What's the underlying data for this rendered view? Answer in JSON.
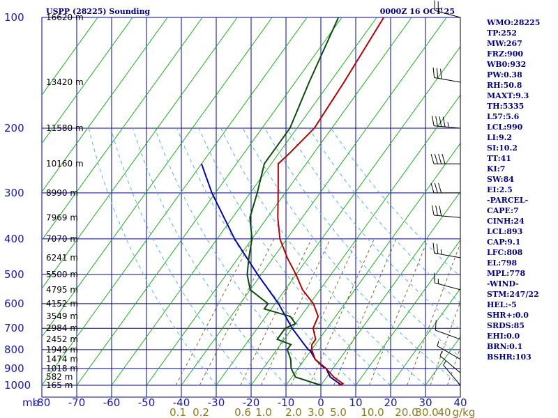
{
  "chart_data": {
    "type": "line",
    "title": "USPP (28225) Sounding",
    "time": "0000Z 16 OCT 25",
    "pressure_ticks": [
      "100",
      "200",
      "300",
      "400",
      "500",
      "600",
      "700",
      "800",
      "900",
      "1000"
    ],
    "pressure_unit": "mb",
    "temperature_ticks": [
      "-80",
      "-70",
      "-60",
      "-50",
      "-40",
      "-30",
      "-20",
      "-10",
      "0",
      "10",
      "20",
      "30",
      "40"
    ],
    "mixing_ratio_ticks": [
      "0.1",
      "0.2",
      "0.6",
      "1.0",
      "2.0",
      "3.0",
      "5.0",
      "10.0",
      "20.0",
      "30.0",
      "40",
      "g/kg"
    ],
    "height_labels": [
      {
        "p": 100,
        "label": "16620 m"
      },
      {
        "p": 150,
        "label": "13420 m"
      },
      {
        "p": 200,
        "label": "11580 m"
      },
      {
        "p": 250,
        "label": "10160 m"
      },
      {
        "p": 300,
        "label": "8990 m"
      },
      {
        "p": 350,
        "label": "7969 m"
      },
      {
        "p": 400,
        "label": "7070 m"
      },
      {
        "p": 450,
        "label": "6241 m"
      },
      {
        "p": 500,
        "label": "5500 m"
      },
      {
        "p": 550,
        "label": "4795 m"
      },
      {
        "p": 600,
        "label": "4152 m"
      },
      {
        "p": 650,
        "label": "3549 m"
      },
      {
        "p": 700,
        "label": "2984 m"
      },
      {
        "p": 750,
        "label": "2452 m"
      },
      {
        "p": 800,
        "label": "1949 m"
      },
      {
        "p": 850,
        "label": "1474 m"
      },
      {
        "p": 900,
        "label": "1018 m"
      },
      {
        "p": 950,
        "label": "582 m"
      },
      {
        "p": 1000,
        "label": "165 m"
      }
    ],
    "temperature_series": {
      "name": "temperature",
      "color": "#b00000",
      "points": [
        [
          1000,
          5
        ],
        [
          990,
          6
        ],
        [
          950,
          2
        ],
        [
          900,
          -2
        ],
        [
          850,
          -7
        ],
        [
          800,
          -10
        ],
        [
          775,
          -11
        ],
        [
          750,
          -11
        ],
        [
          700,
          -14
        ],
        [
          650,
          -15
        ],
        [
          600,
          -19
        ],
        [
          550,
          -25
        ],
        [
          500,
          -30
        ],
        [
          450,
          -36
        ],
        [
          400,
          -42
        ],
        [
          350,
          -47
        ],
        [
          300,
          -52
        ],
        [
          250,
          -58
        ],
        [
          235,
          -57
        ],
        [
          200,
          -55
        ],
        [
          150,
          -56
        ],
        [
          100,
          -58
        ]
      ]
    },
    "dewpoint_series": {
      "name": "dewpoint",
      "color": "#0a4a0a",
      "points": [
        [
          1000,
          0
        ],
        [
          950,
          -9
        ],
        [
          900,
          -12
        ],
        [
          850,
          -14
        ],
        [
          800,
          -17
        ],
        [
          775,
          -17
        ],
        [
          750,
          -22
        ],
        [
          700,
          -22
        ],
        [
          680,
          -20
        ],
        [
          650,
          -23
        ],
        [
          620,
          -32
        ],
        [
          600,
          -32
        ],
        [
          550,
          -40
        ],
        [
          500,
          -44
        ],
        [
          450,
          -47
        ],
        [
          400,
          -50
        ],
        [
          350,
          -55
        ],
        [
          300,
          -58
        ],
        [
          250,
          -62
        ],
        [
          200,
          -62
        ],
        [
          150,
          -66
        ],
        [
          100,
          -71
        ]
      ]
    },
    "parcel_series": {
      "name": "parcel",
      "color": "#0000a0",
      "points": [
        [
          1000,
          6
        ],
        [
          990,
          5
        ],
        [
          950,
          1
        ],
        [
          900,
          -2
        ],
        [
          893,
          -3
        ],
        [
          850,
          -7
        ],
        [
          808,
          -10
        ],
        [
          800,
          -11
        ],
        [
          700,
          -20
        ],
        [
          600,
          -29
        ],
        [
          500,
          -41
        ],
        [
          400,
          -55
        ],
        [
          300,
          -71
        ],
        [
          250,
          -80
        ]
      ]
    },
    "wind_barbs": [
      {
        "p": 100,
        "dir": 255,
        "spd": 25
      },
      {
        "p": 150,
        "dir": 260,
        "spd": 30
      },
      {
        "p": 200,
        "dir": 265,
        "spd": 45
      },
      {
        "p": 250,
        "dir": 270,
        "spd": 40
      },
      {
        "p": 300,
        "dir": 270,
        "spd": 30
      },
      {
        "p": 350,
        "dir": 265,
        "spd": 30
      },
      {
        "p": 450,
        "dir": 260,
        "spd": 25
      },
      {
        "p": 550,
        "dir": 255,
        "spd": 15
      },
      {
        "p": 750,
        "dir": 250,
        "spd": 10
      },
      {
        "p": 850,
        "dir": 240,
        "spd": 5
      },
      {
        "p": 925,
        "dir": 230,
        "spd": 5
      },
      {
        "p": 1000,
        "dir": 220,
        "spd": 5
      }
    ],
    "grid": true,
    "indices": [
      "WMO:28225",
      "TP:252",
      "MW:267",
      "FRZ:900",
      "WB0:932",
      "PW:0.38",
      "RH:50.8",
      "MAXT:9.3",
      "TH:5335",
      "L57:5.6",
      "LCL:990",
      "LI:9.2",
      "SI:10.2",
      "TT:41",
      "KI:7",
      "SW:84",
      "EI:2.5",
      "-PARCEL-",
      "CAPE:7",
      "CINH:24",
      "LCL:893",
      "CAP:9.1",
      "LFC:808",
      "EL:798",
      "MPL:778",
      "-WIND-",
      "STM:247/22",
      "HEL:-5",
      "SHR+:0.0",
      "SRDS:85",
      "EHI:0.0",
      "BRN:0.1",
      "BSHR:103"
    ]
  }
}
